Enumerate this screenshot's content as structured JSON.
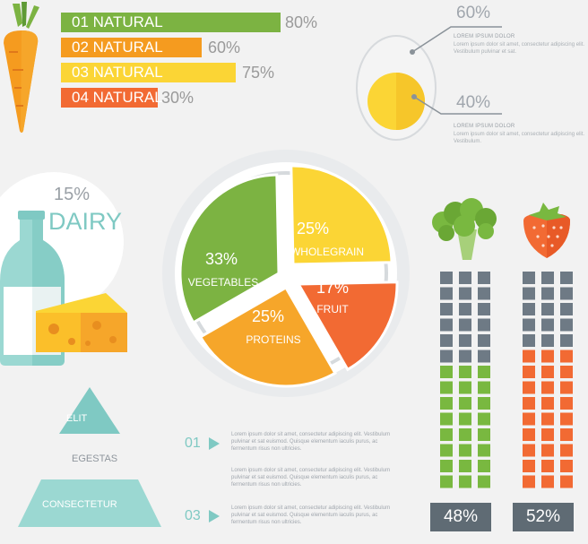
{
  "colors": {
    "gray": "#6e7a85",
    "green": "#79b840",
    "orange": "#f26a33",
    "teal": "#7fc9c3"
  },
  "top_bars": [
    {
      "label": "01 NATURAL",
      "value": 80,
      "percent_text": "80%",
      "color": "#7cb342"
    },
    {
      "label": "02 NATURAL",
      "value": 60,
      "percent_text": "60%",
      "color": "#f59b1f"
    },
    {
      "label": "03 NATURAL",
      "value": 75,
      "percent_text": "75%",
      "color": "#fbd535"
    },
    {
      "label": "04 NATURAL",
      "value": 30,
      "percent_text": "30%",
      "color": "#f26a33"
    }
  ],
  "egg": {
    "top": {
      "percent": "60%",
      "title": "LOREM IPSUM DOLOR",
      "body": "Lorem ipsum dolor sit amet, consectetur adipiscing elit. Vestibulum pulvinar et sat."
    },
    "bottom": {
      "percent": "40%",
      "title": "LOREM IPSUM DOLOR",
      "body": "Lorem ipsum dolor sit amet, consectetur adipiscing elit. Vestibulum."
    }
  },
  "dairy": {
    "percent": "15%",
    "label": "DAIRY"
  },
  "chart_data": {
    "type": "pie",
    "title": "",
    "slices": [
      {
        "label": "WHOLEGRAIN",
        "value": 25,
        "percent_text": "25%",
        "color": "#fbd535"
      },
      {
        "label": "FRUIT",
        "value": 17,
        "percent_text": "17%",
        "color": "#f26a33"
      },
      {
        "label": "PROTEINS",
        "value": 25,
        "percent_text": "25%",
        "color": "#f6a62a"
      },
      {
        "label": "VEGETABLES",
        "value": 33,
        "percent_text": "33%",
        "color": "#7cb342"
      }
    ]
  },
  "pyramid": {
    "levels": [
      {
        "label": "ELIT"
      },
      {
        "label": "EGESTAS"
      },
      {
        "label": "CONSECTETUR"
      }
    ]
  },
  "notes": [
    {
      "number": "01",
      "text": "Lorem ipsum dolor sit amet, consectetur adipiscing elit. Vestibulum pulvinar et sat euismod. Quisque elementum iaculis purus, ac fermentum risus non ultricies."
    },
    {
      "number": "",
      "text": "Lorem ipsum dolor sit amet, consectetur adipiscing elit. Vestibulum pulvinar et sat euismod. Quisque elementum iaculis purus, ac fermentum risus non ultricies."
    },
    {
      "number": "03",
      "text": "Lorem ipsum dolor sit amet, consectetur adipiscing elit. Vestibulum pulvinar et sat euismod. Quisque elementum iaculis purus, ac fermentum risus non ultricies."
    }
  ],
  "square_charts": [
    {
      "name": "broccoli",
      "percent_text": "48%",
      "colored_rows": 8,
      "total_rows": 14,
      "fill_color": "#79b840"
    },
    {
      "name": "strawberry",
      "percent_text": "52%",
      "colored_rows": 9,
      "total_rows": 14,
      "fill_color": "#f26a33"
    }
  ]
}
